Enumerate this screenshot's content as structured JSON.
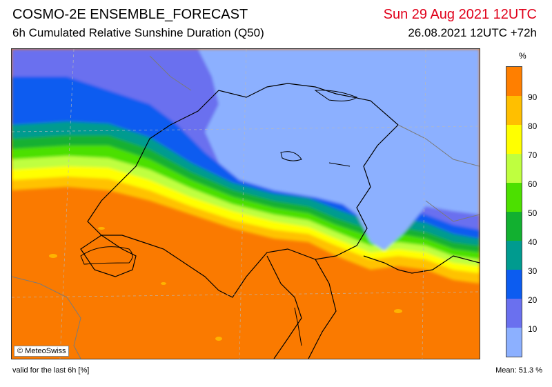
{
  "header": {
    "model": "COSMO-2E ENSEMBLE_FORECAST",
    "product": "6h Cumulated Relative Sunshine Duration (Q50)",
    "valid_date": "Sun 29 Aug 2021 12UTC",
    "run": "26.08.2021 12UTC +72h"
  },
  "map": {
    "credit": "© MeteoSwiss"
  },
  "legend": {
    "unit": "%",
    "ticks": [
      "90",
      "80",
      "70",
      "60",
      "50",
      "40",
      "30",
      "20",
      "10"
    ],
    "colors": [
      "#ff7f00",
      "#ffbf00",
      "#ffff00",
      "#bfff3f",
      "#4ce000",
      "#12b030",
      "#009b8f",
      "#0c5cf0",
      "#6a70ef",
      "#8cb0ff"
    ]
  },
  "footer": {
    "validity": "valid for the last 6h [%]",
    "mean": "Mean:  51.3 %"
  }
}
